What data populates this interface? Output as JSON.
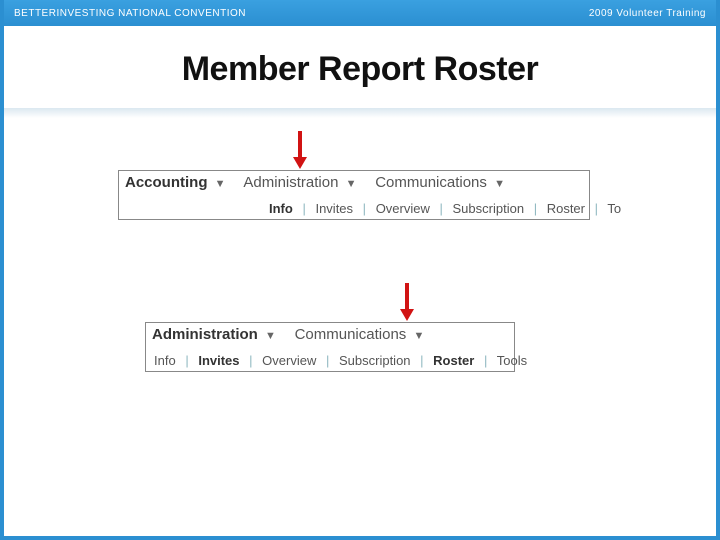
{
  "header": {
    "left": "BETTERINVESTING NATIONAL CONVENTION",
    "right": "2009 Volunteer Training"
  },
  "title": "Member Report Roster",
  "colors": {
    "header_bg_top": "#3aa0e0",
    "header_bg_bottom": "#2b8fd1",
    "border": "#2b8fd1",
    "arrow": "#d11313",
    "title_text": "#111111",
    "tab_text": "#555555",
    "sep": "#8fb8c0"
  },
  "panel1": {
    "tabs": [
      {
        "label": "Accounting",
        "bold": true
      },
      {
        "label": "Administration",
        "bold": false
      },
      {
        "label": "Communications",
        "bold": false
      }
    ],
    "sub": [
      {
        "label": "Info",
        "bold": true
      },
      {
        "label": "Invites",
        "bold": false
      },
      {
        "label": "Overview",
        "bold": false
      },
      {
        "label": "Subscription",
        "bold": false
      },
      {
        "label": "Roster",
        "bold": false
      },
      {
        "label": "To",
        "bold": false
      }
    ]
  },
  "panel2": {
    "tabs": [
      {
        "label": "Administration",
        "bold": true
      },
      {
        "label": "Communications",
        "bold": false
      }
    ],
    "sub": [
      {
        "label": "Info",
        "bold": false
      },
      {
        "label": "Invites",
        "bold": true
      },
      {
        "label": "Overview",
        "bold": false
      },
      {
        "label": "Subscription",
        "bold": false
      },
      {
        "label": "Roster",
        "bold": true
      },
      {
        "label": "Tools",
        "bold": false
      }
    ]
  }
}
